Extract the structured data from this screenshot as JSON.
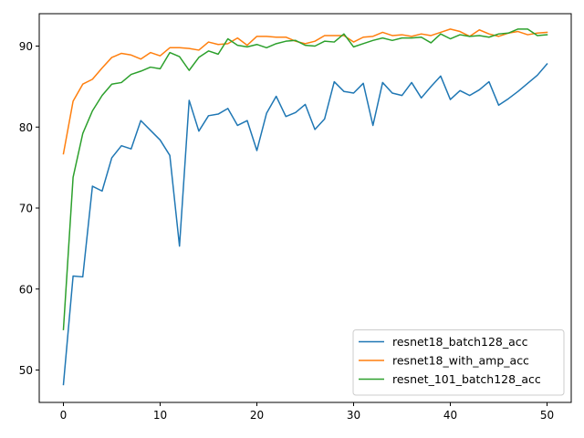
{
  "chart_data": {
    "type": "line",
    "title": "",
    "xlabel": "",
    "ylabel": "",
    "xlim": [
      -2.5,
      52.5
    ],
    "ylim": [
      46,
      94
    ],
    "xticks": [
      0,
      10,
      20,
      30,
      40,
      50
    ],
    "yticks": [
      50,
      60,
      70,
      80,
      90
    ],
    "grid": false,
    "legend_position": "lower-right",
    "x": [
      0,
      1,
      2,
      3,
      4,
      5,
      6,
      7,
      8,
      9,
      10,
      11,
      12,
      13,
      14,
      15,
      16,
      17,
      18,
      19,
      20,
      21,
      22,
      23,
      24,
      25,
      26,
      27,
      28,
      29,
      30,
      31,
      32,
      33,
      34,
      35,
      36,
      37,
      38,
      39,
      40,
      41,
      42,
      43,
      44,
      45,
      46,
      47,
      48,
      49,
      50
    ],
    "series": [
      {
        "name": "resnet18_batch128_acc",
        "color": "#1f77b4",
        "values": [
          48.2,
          61.6,
          61.5,
          72.7,
          72.1,
          76.2,
          77.7,
          77.3,
          80.8,
          79.6,
          78.4,
          76.5,
          65.3,
          83.3,
          79.5,
          81.4,
          81.6,
          82.3,
          80.2,
          80.8,
          77.1,
          81.7,
          83.8,
          81.3,
          81.8,
          82.8,
          79.7,
          81.0,
          85.6,
          84.4,
          84.2,
          85.4,
          80.2,
          85.5,
          84.2,
          83.9,
          85.5,
          83.6,
          85.0,
          86.3,
          83.4,
          84.5,
          83.9,
          84.6,
          85.6,
          82.7,
          83.5,
          84.4,
          85.4,
          86.4,
          87.8
        ]
      },
      {
        "name": "resnet18_with_amp_acc",
        "color": "#ff7f0e",
        "values": [
          76.7,
          83.2,
          85.3,
          85.9,
          87.3,
          88.6,
          89.1,
          88.9,
          88.4,
          89.2,
          88.8,
          89.8,
          89.8,
          89.7,
          89.5,
          90.5,
          90.2,
          90.3,
          91.0,
          90.1,
          91.2,
          91.2,
          91.1,
          91.1,
          90.6,
          90.3,
          90.6,
          91.3,
          91.3,
          91.3,
          90.5,
          91.1,
          91.2,
          91.7,
          91.3,
          91.4,
          91.2,
          91.5,
          91.3,
          91.7,
          92.1,
          91.8,
          91.2,
          92.0,
          91.5,
          91.2,
          91.6,
          91.8,
          91.4,
          91.6,
          91.7
        ]
      },
      {
        "name": "resnet_101_batch128_acc",
        "color": "#2ca02c",
        "values": [
          55.0,
          73.8,
          79.2,
          82.0,
          83.9,
          85.3,
          85.5,
          86.5,
          86.9,
          87.4,
          87.2,
          89.2,
          88.7,
          87.0,
          88.6,
          89.4,
          89.0,
          90.9,
          90.1,
          89.9,
          90.2,
          89.8,
          90.3,
          90.6,
          90.7,
          90.1,
          90.0,
          90.6,
          90.5,
          91.5,
          89.9,
          90.3,
          90.7,
          91.0,
          90.7,
          91.0,
          91.0,
          91.1,
          90.4,
          91.5,
          90.9,
          91.4,
          91.2,
          91.3,
          91.1,
          91.5,
          91.6,
          92.1,
          92.1,
          91.3,
          91.4
        ]
      }
    ]
  }
}
